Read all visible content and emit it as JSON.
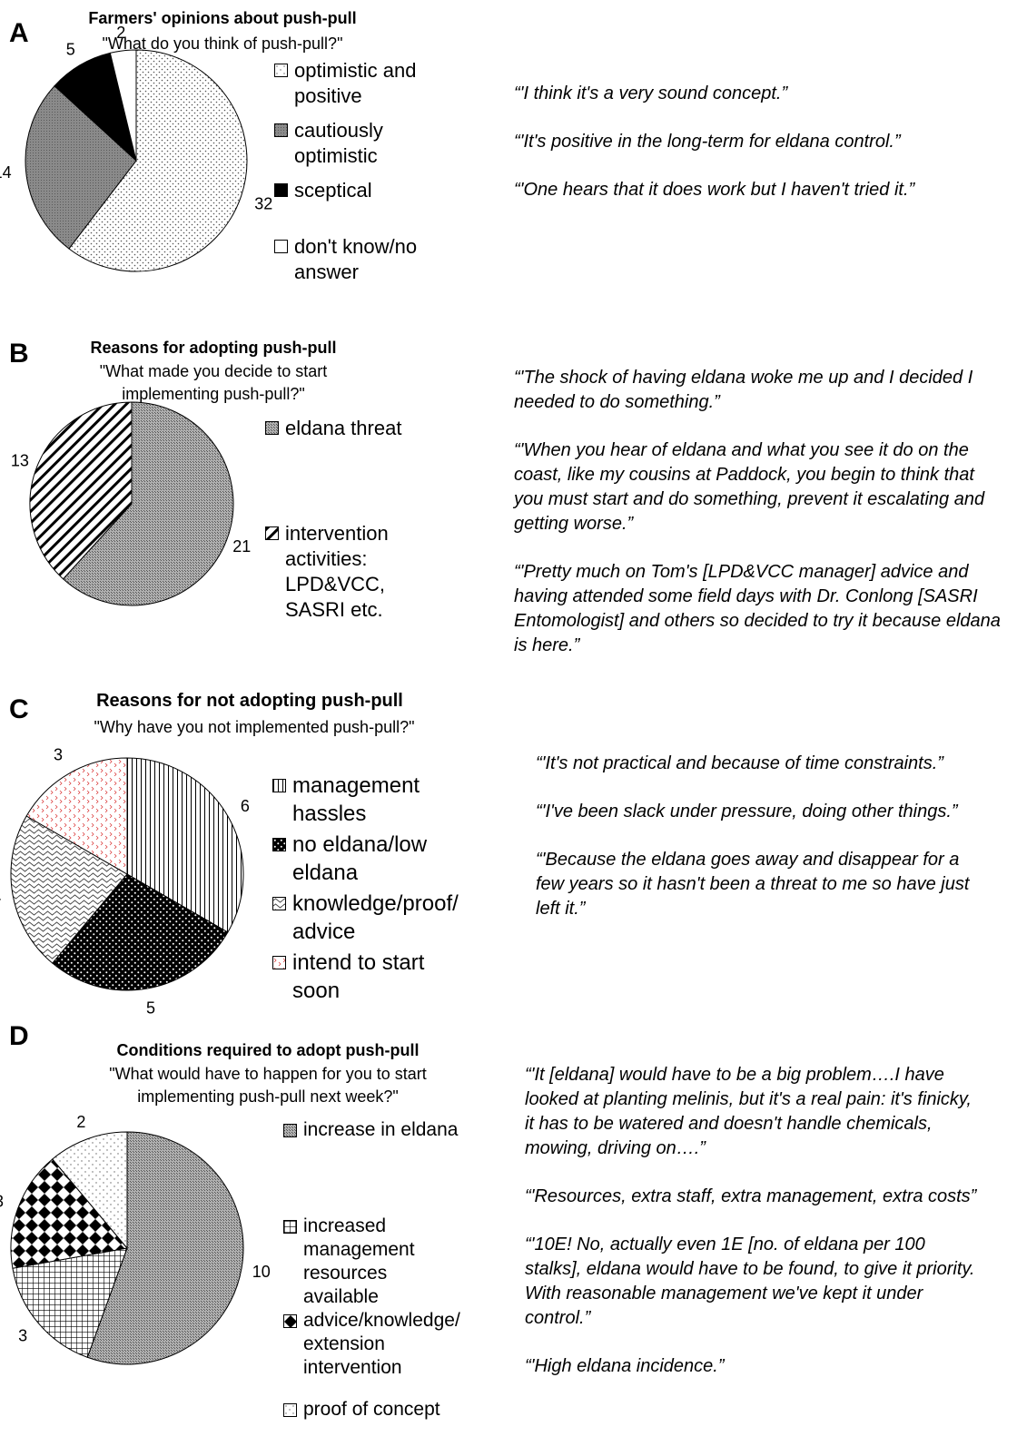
{
  "chart_data": [
    {
      "panel": "A",
      "type": "pie",
      "title": "Farmers' opinions about push-pull",
      "subtitle": "\"What do you think of push-pull?\"",
      "categories": [
        "optimistic and positive",
        "cautiously optimistic",
        "sceptical",
        "don't know/no answer"
      ],
      "values": [
        32,
        14,
        5,
        2
      ],
      "legend_placement": "right",
      "quotes": [
        "“'I think it's a very sound concept.”",
        "“'It's positive in the long-term for eldana control.”",
        "“'One hears that it does work but I haven't tried it.”"
      ]
    },
    {
      "panel": "B",
      "type": "pie",
      "title": "Reasons for adopting push-pull",
      "subtitle": "\"What made you decide to start implementing push-pull?\"",
      "categories": [
        "eldana threat",
        "intervention activities: LPD&VCC, SASRI etc."
      ],
      "values": [
        21,
        13
      ],
      "legend_placement": "right",
      "quotes": [
        "“'The shock of having eldana woke me up and I decided I needed to do something.”",
        "“'When you hear of eldana and what you see it do on the coast, like my cousins at Paddock, you begin to think that you must start and do something, prevent it escalating and getting worse.”",
        "“'Pretty much on Tom's [LPD&VCC manager] advice and having attended some field days with Dr. Conlong [SASRI Entomologist] and others so decided to try it because eldana is here.”"
      ]
    },
    {
      "panel": "C",
      "type": "pie",
      "title": "Reasons for not adopting push-pull",
      "subtitle": "\"Why have you not implemented push-pull?\"",
      "categories": [
        "management hassles",
        "no eldana/low eldana",
        "knowledge/proof/ advice",
        "intend to start soon"
      ],
      "values": [
        6,
        5,
        4,
        3
      ],
      "legend_placement": "right",
      "quotes": [
        "“'It's not practical and because of time constraints.”",
        "“'I've been slack under pressure, doing other things.”",
        "“'Because the eldana goes away and disappear for a few years so it hasn't been a threat to me so have just left it.”"
      ]
    },
    {
      "panel": "D",
      "type": "pie",
      "title": "Conditions required to adopt push-pull",
      "subtitle": "\"What would have to happen for you to start implementing push-pull next week?\"",
      "categories": [
        "increase in eldana",
        "increased management resources available",
        "advice/knowledge/ extension intervention",
        "proof of concept"
      ],
      "values": [
        10,
        3,
        3,
        2
      ],
      "legend_placement": "right",
      "quotes": [
        "“'It [eldana] would have to be a big problem….I have looked at planting melinis, but it's a real pain: it's finicky, it has to be watered and doesn't handle chemicals, mowing, driving on….”",
        "“'Resources, extra staff, extra management, extra costs”",
        "“'10E! No, actually even 1E [no. of eldana per 100 stalks], eldana would have to be found, to give it priority. With reasonable management we've kept it under control.”",
        "“'High eldana incidence.”"
      ]
    }
  ]
}
